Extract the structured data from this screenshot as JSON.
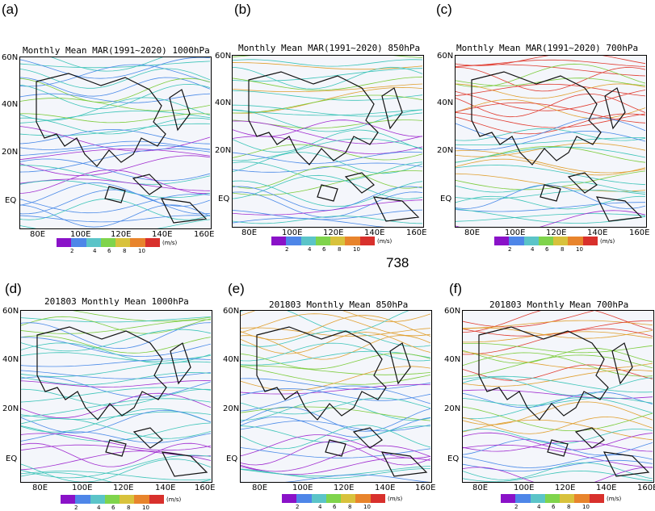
{
  "panels": [
    {
      "letter": "(a)",
      "title": "Monthly Mean MAR(1991~2020) 1000hPa"
    },
    {
      "letter": "(b)",
      "title": "Monthly Mean MAR(1991~2020) 850hPa"
    },
    {
      "letter": "(c)",
      "title": "Monthly Mean MAR(1991~2020) 700hPa"
    },
    {
      "letter": "(d)",
      "title": "201803 Monthly Mean 1000hPa"
    },
    {
      "letter": "(e)",
      "title": "201803 Monthly Mean 850hPa"
    },
    {
      "letter": "(f)",
      "title": "201803 Monthly Mean 700hPa"
    }
  ],
  "lat_labels": [
    "60N",
    "40N",
    "20N",
    "EQ"
  ],
  "lon_labels": [
    "80E",
    "100E",
    "120E",
    "140E",
    "160E"
  ],
  "colorbar": {
    "ticks": [
      "2",
      "4",
      "6",
      "8",
      "10"
    ],
    "unit": "(m/s)",
    "colors": [
      "#8a12c8",
      "#4e86e8",
      "#5bc4c8",
      "#7fd44c",
      "#d8c23c",
      "#e8842c",
      "#d8302c"
    ]
  },
  "center_number": "738",
  "stream_colors": [
    "#a02cd0",
    "#4a8ae8",
    "#3cc4b8",
    "#7ccc3c",
    "#e0a030",
    "#e03c30"
  ]
}
